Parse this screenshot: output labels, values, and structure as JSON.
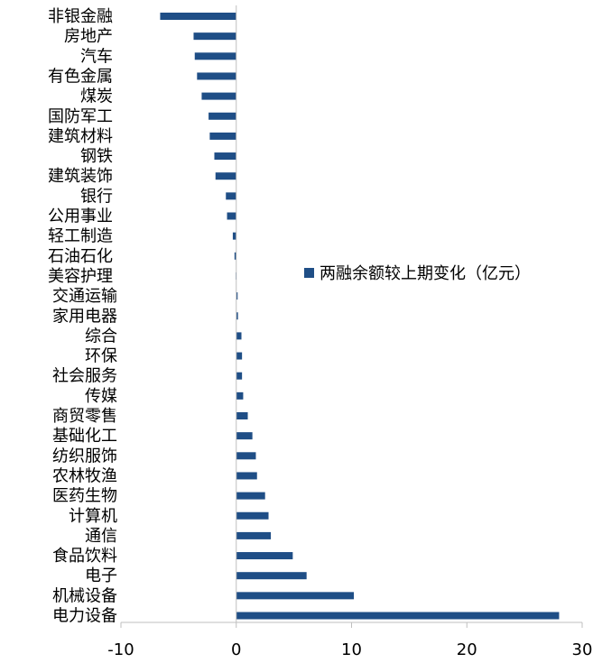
{
  "chart_data": {
    "type": "bar",
    "orientation": "horizontal",
    "title": "",
    "xlabel": "",
    "ylabel": "",
    "xlim": [
      -10,
      30
    ],
    "x_ticks": [
      -10,
      0,
      10,
      20,
      30
    ],
    "x_tick_labels": [
      "-10",
      "0",
      "10",
      "20",
      "30"
    ],
    "grid": false,
    "legend_position": "right",
    "categories": [
      "非银金融",
      "房地产",
      "汽车",
      "有色金属",
      "煤炭",
      "国防军工",
      "建筑材料",
      "钢铁",
      "建筑装饰",
      "银行",
      "公用事业",
      "轻工制造",
      "石油石化",
      "美容护理",
      "交通运输",
      "家用电器",
      "综合",
      "环保",
      "社会服务",
      "传媒",
      "商贸零售",
      "基础化工",
      "纺织服饰",
      "农林牧渔",
      "医药生物",
      "计算机",
      "通信",
      "食品饮料",
      "电子",
      "机械设备",
      "电力设备"
    ],
    "series": [
      {
        "name": "两融余额较上期变化（亿元）",
        "color": "#1f4e86",
        "values": [
          -6.6,
          -3.7,
          -3.6,
          -3.4,
          -3.0,
          -2.4,
          -2.3,
          -1.9,
          -1.8,
          -0.9,
          -0.8,
          -0.3,
          -0.15,
          -0.05,
          0.12,
          0.15,
          0.45,
          0.5,
          0.5,
          0.6,
          1.0,
          1.4,
          1.7,
          1.8,
          2.5,
          2.8,
          3.0,
          4.9,
          6.1,
          10.2,
          28.0
        ]
      }
    ]
  }
}
